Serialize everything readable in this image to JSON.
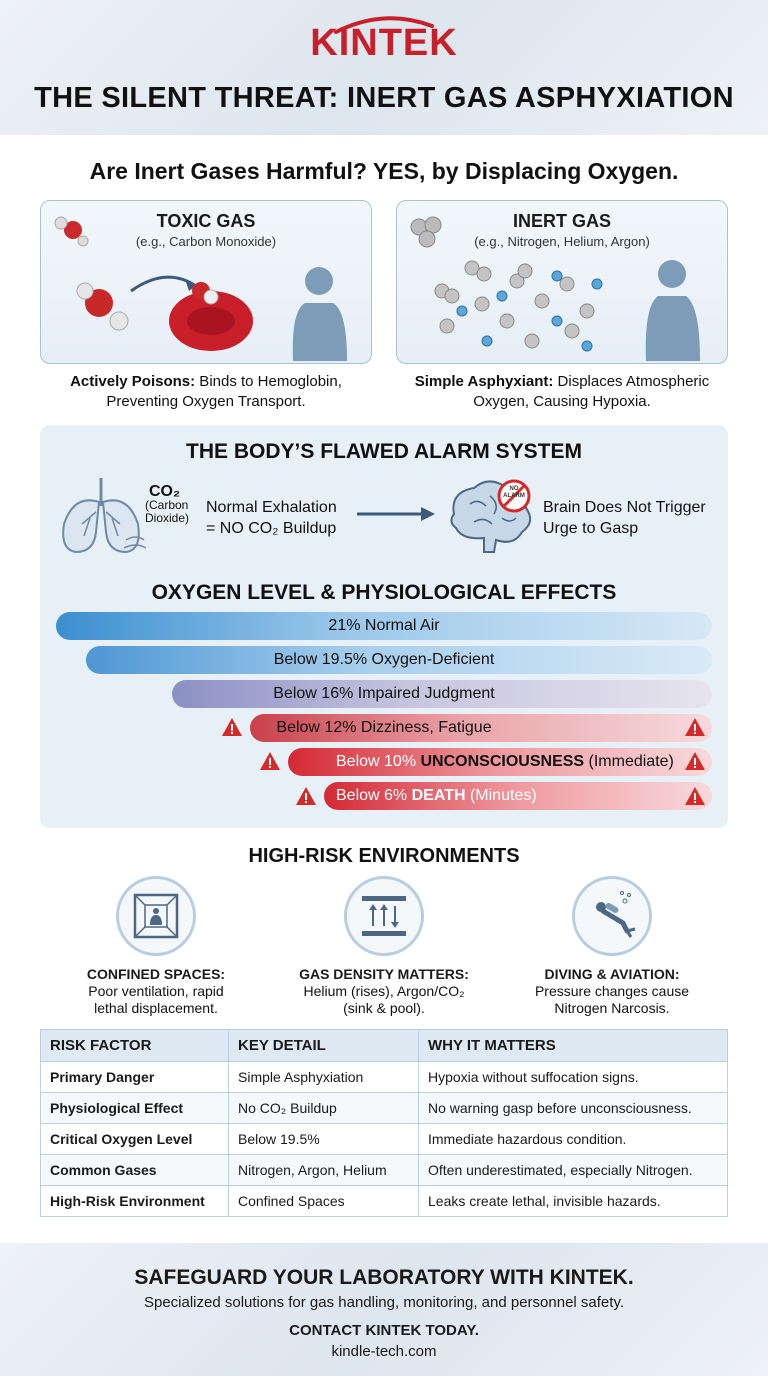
{
  "brand": {
    "logo": "KINTEK",
    "accent": "#c8202a"
  },
  "title": "THE SILENT THREAT: INERT GAS ASPHYXIATION",
  "subtitle": "Are Inert Gases Harmful? YES, by Displacing Oxygen.",
  "cards": [
    {
      "title": "TOXIC GAS",
      "sub": "(e.g., Carbon Monoxide)",
      "caption_bold": "Actively Poisons:",
      "caption_line1": " Binds to Hemoglobin,",
      "caption_line2": "Preventing Oxygen Transport.",
      "icon": "co-molecule-icon"
    },
    {
      "title": "INERT GAS",
      "sub": "(e.g., Nitrogen, Helium, Argon)",
      "caption_bold": "Simple Asphyxiant:",
      "caption_line1": " Displaces Atmospheric",
      "caption_line2": "Oxygen, Causing Hypoxia.",
      "icon": "gas-molecules-icon"
    }
  ],
  "alarm": {
    "title": "THE BODY’S FLAWED ALARM SYSTEM",
    "co2": "CO₂",
    "co2_line1": "(Carbon",
    "co2_line2": "Dioxide)",
    "exhale_line1": "Normal Exhalation",
    "exhale_line2": "= NO CO₂ Buildup",
    "no_alarm_1": "NO",
    "no_alarm_2": "ALARM",
    "brain_line1": "Brain Does Not Trigger",
    "brain_line2": "Urge to Gasp"
  },
  "oxygen": {
    "title": "OXYGEN LEVEL & PHYSIOLOGICAL EFFECTS",
    "levels": [
      {
        "prefix": "21% Normal Air",
        "emph": "",
        "suffix": "",
        "severity": "normal",
        "warn": false
      },
      {
        "prefix": "Below 19.5% Oxygen-Deficient",
        "emph": "",
        "suffix": "",
        "severity": "low",
        "warn": false
      },
      {
        "prefix": "Below 16% Impaired Judgment",
        "emph": "",
        "suffix": "",
        "severity": "mid",
        "warn": false
      },
      {
        "prefix": "Below 12% Dizziness, Fatigue",
        "emph": "",
        "suffix": "",
        "severity": "high",
        "warn": true
      },
      {
        "prefix": "Below 10% ",
        "emph": "UNCONSCIOUSNESS",
        "suffix": " (Immediate)",
        "severity": "severe",
        "warn": true
      },
      {
        "prefix": "Below 6% ",
        "emph": "DEATH",
        "suffix": " (Minutes)",
        "severity": "fatal",
        "warn": true
      }
    ]
  },
  "environments": {
    "title": "HIGH-RISK ENVIRONMENTS",
    "items": [
      {
        "title": "CONFINED SPACES:",
        "line1": "Poor ventilation, rapid",
        "line2": "lethal displacement.",
        "icon": "confined-space-icon"
      },
      {
        "title": "GAS DENSITY MATTERS:",
        "line1": "Helium (rises), Argon/CO₂",
        "line2": "(sink & pool).",
        "icon": "gas-density-icon"
      },
      {
        "title": "DIVING & AVIATION:",
        "line1": "Pressure changes cause",
        "line2": "Nitrogen Narcosis.",
        "icon": "diver-icon"
      }
    ]
  },
  "table": {
    "headers": [
      "RISK FACTOR",
      "KEY DETAIL",
      "WHY IT MATTERS"
    ],
    "rows": [
      [
        "Primary Danger",
        "Simple Asphyxiation",
        "Hypoxia without suffocation signs."
      ],
      [
        "Physiological Effect",
        "No CO₂ Buildup",
        "No warning gasp before unconsciousness."
      ],
      [
        "Critical Oxygen Level",
        "Below 19.5%",
        "Immediate hazardous condition."
      ],
      [
        "Common Gases",
        "Nitrogen, Argon, Helium",
        "Often underestimated, especially Nitrogen."
      ],
      [
        "High-Risk Environment",
        "Confined Spaces",
        "Leaks create lethal, invisible hazards."
      ]
    ]
  },
  "footer": {
    "headline": "SAFEGUARD YOUR LABORATORY WITH KINTEK.",
    "tagline": "Specialized solutions for gas handling, monitoring, and personnel safety.",
    "cta": "CONTACT KINTEK TODAY.",
    "url": "kindle-tech.com"
  },
  "colors": {
    "blue": "#3b8fd0",
    "red": "#d92b35",
    "warning": "#d42a2a"
  }
}
